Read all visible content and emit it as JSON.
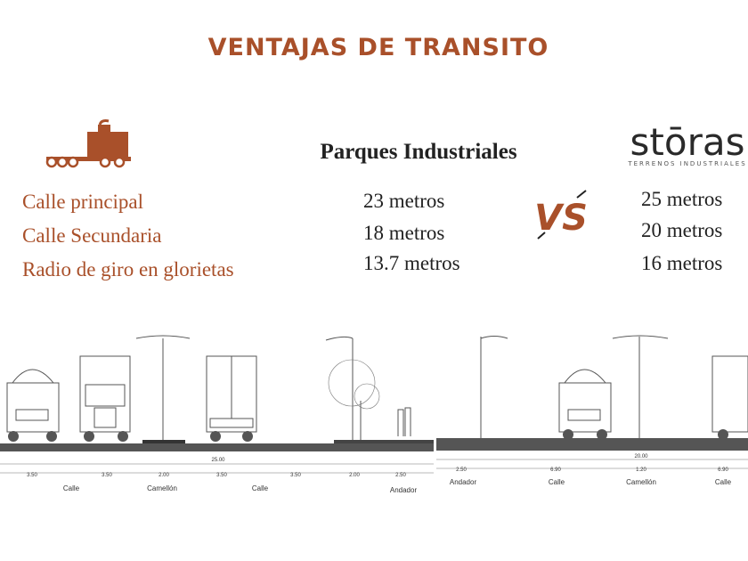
{
  "header": {
    "title": "VENTAJAS DE TRANSITO"
  },
  "comparison": {
    "left_heading": "Parques Industriales",
    "brand": {
      "name": "stōras",
      "tagline": "TERRENOS INDUSTRIALES"
    },
    "vs": "VS",
    "rows": [
      {
        "label": "Calle principal",
        "left": "23 metros",
        "right": "25 metros"
      },
      {
        "label": "Calle Secundaria",
        "left": "18 metros",
        "right": "20 metros"
      },
      {
        "label": "Radio de giro en glorietas",
        "left": "13.7 metros",
        "right": "16 metros"
      }
    ]
  },
  "sections": [
    {
      "total": "25.00",
      "dimensions": [
        "3.50",
        "3.50",
        "2.00",
        "3.50",
        "3.50",
        "2.00",
        "2.50"
      ],
      "zones": [
        "Calle",
        "Camellón",
        "Calle",
        "Andador"
      ]
    },
    {
      "total": "20.00",
      "dimensions": [
        "2.50",
        "6.90",
        "1.20",
        "6.90"
      ],
      "zones": [
        "Andador",
        "Calle",
        "Camellón",
        "Calle"
      ]
    }
  ]
}
